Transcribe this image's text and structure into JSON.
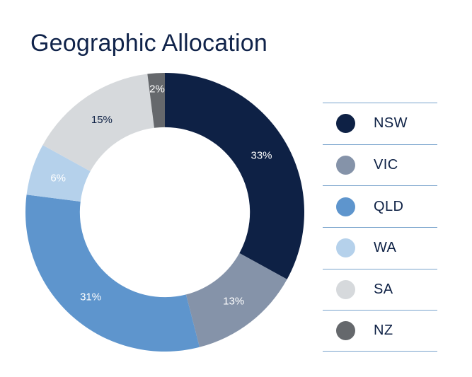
{
  "chart_data": {
    "type": "pie",
    "subtype": "donut",
    "title": "Geographic Allocation",
    "categories": [
      "NSW",
      "VIC",
      "QLD",
      "WA",
      "SA",
      "NZ"
    ],
    "values": [
      33,
      13,
      31,
      6,
      15,
      2
    ],
    "slice_labels": [
      "33%",
      "13%",
      "31%",
      "6%",
      "15%",
      "2%"
    ],
    "colors": [
      "#0e2145",
      "#8593a9",
      "#5e95cd",
      "#b5d1eb",
      "#d6d9dc",
      "#65686c"
    ],
    "slice_label_colors": [
      "#ffffff",
      "#ffffff",
      "#ffffff",
      "#ffffff",
      "#0e2145",
      "#ffffff"
    ],
    "label_radius_frac": [
      0.805,
      0.805,
      0.805,
      0.805,
      0.805,
      0.89
    ],
    "start_angle_deg": 0,
    "direction": "clockwise",
    "inner_radius_frac": 0.61,
    "legend_position": "right",
    "grid": false
  },
  "style": {
    "background": "#ffffff",
    "title_color": "#10234a",
    "legend_text_color": "#0e2145",
    "legend_divider_color": "#78a3cc"
  }
}
